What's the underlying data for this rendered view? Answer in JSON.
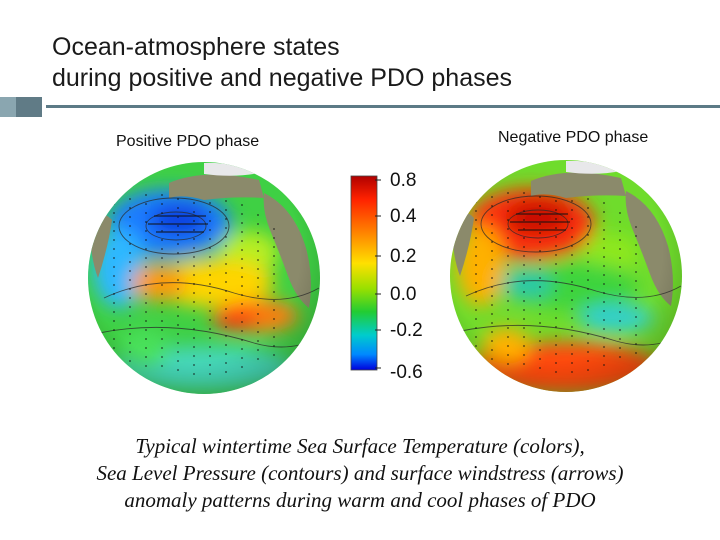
{
  "slide": {
    "title_lines": [
      "Ocean-atmosphere states",
      "during positive and negative PDO phases"
    ],
    "panels": {
      "positive_label": "Positive PDO phase",
      "negative_label": "Negative PDO phase"
    },
    "colorbar": {
      "tick_labels": [
        "0.8",
        "0.4",
        "0.2",
        "0.0",
        "-0.2",
        "-0.6"
      ],
      "colors": [
        "#b00000",
        "#ff2200",
        "#ff8800",
        "#ffe000",
        "#99e000",
        "#22cc33",
        "#00cccc",
        "#0088ff",
        "#0000dd"
      ]
    },
    "caption_lines": [
      "Typical wintertime Sea Surface Temperature (colors),",
      "Sea Level Pressure (contours) and surface windstress (arrows)",
      "anomaly patterns during warm and cool phases of PDO"
    ],
    "accent_colors": {
      "bar_light": "#8aa6b0",
      "bar_dark": "#607b86",
      "rule": "#5c7a86"
    }
  }
}
